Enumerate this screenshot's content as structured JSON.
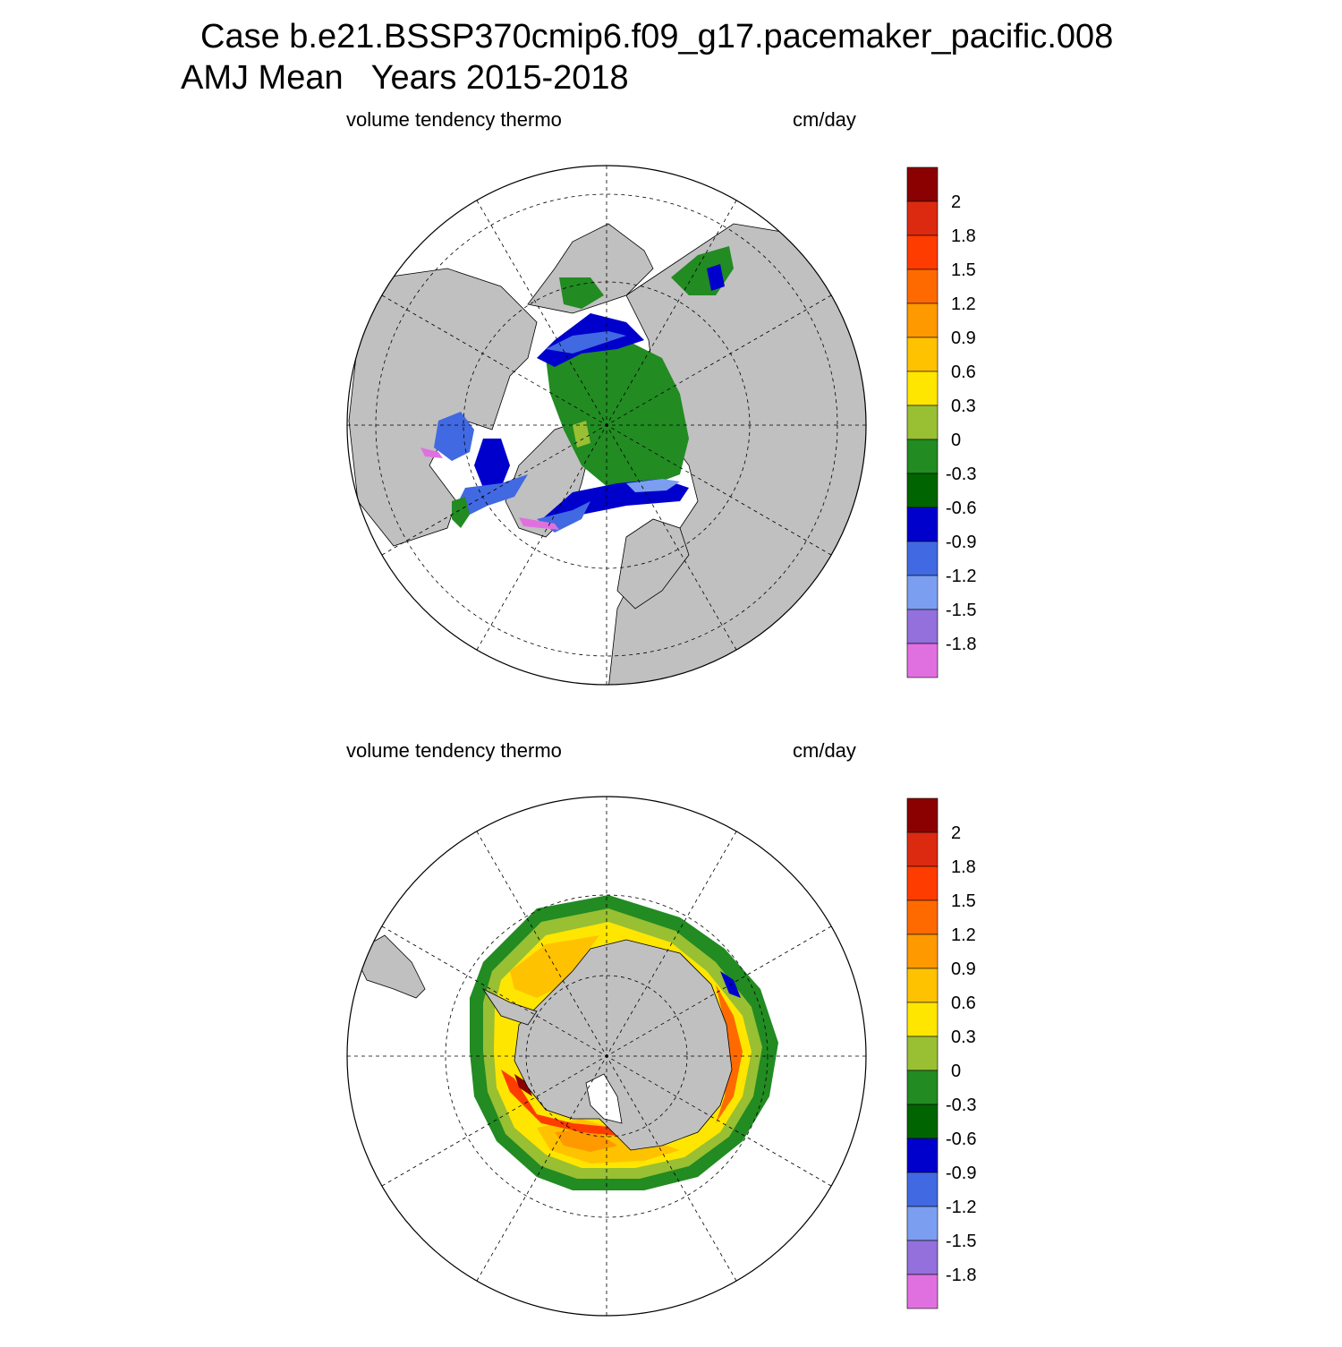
{
  "header": {
    "title_line1": "Case b.e21.BSSP370cmip6.f09_g17.pacemaker_pacific.008",
    "title_line2": "AMJ Mean   Years 2015-2018"
  },
  "panels": [
    {
      "id": "north",
      "left_title": "volume tendency thermo",
      "right_title": "cm/day"
    },
    {
      "id": "south",
      "left_title": "volume tendency thermo",
      "right_title": "cm/day"
    }
  ],
  "colorbar": {
    "labels": [
      "2",
      "1.8",
      "1.5",
      "1.2",
      "0.9",
      "0.6",
      "0.3",
      "0",
      "-0.3",
      "-0.6",
      "-0.9",
      "-1.2",
      "-1.5",
      "-1.8"
    ],
    "colors": [
      "#8b0000",
      "#dc2a10",
      "#ff3c00",
      "#ff6a00",
      "#ff9900",
      "#ffc200",
      "#ffe600",
      "#99bf33",
      "#228b22",
      "#006400",
      "#0000cd",
      "#4169e1",
      "#7b9ef0",
      "#9370db",
      "#e070e0"
    ]
  },
  "map_colors": {
    "land": "#c0c0c0",
    "ocean": "#ffffff"
  }
}
